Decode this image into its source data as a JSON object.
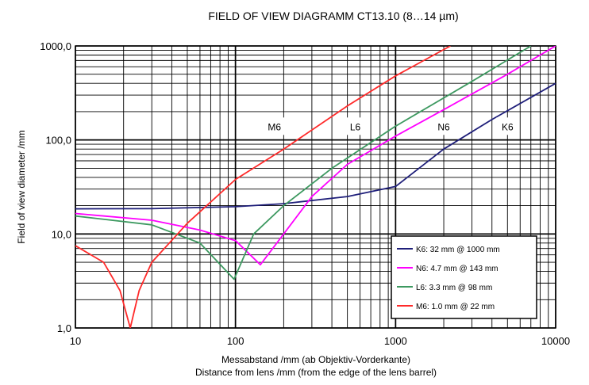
{
  "chart_data": {
    "type": "line",
    "title": "FIELD OF VIEW DIAGRAMM CT13.10 (8…14 µm)",
    "xlabel": "Messabstand /mm (ab Objektiv-Vorderkante)",
    "xlabel2": "Distance from lens /mm (from the edge of the lens barrel)",
    "ylabel": "Field of view diameter /mm",
    "x_scale": "log",
    "y_scale": "log",
    "xlim": [
      10,
      10000
    ],
    "ylim": [
      1,
      1000
    ],
    "grid": true,
    "legend_position": "bottom-right",
    "x_ticks": [
      {
        "value": 10,
        "label": "10"
      },
      {
        "value": 100,
        "label": "100"
      },
      {
        "value": 1000,
        "label": "1000"
      },
      {
        "value": 10000,
        "label": "10000"
      }
    ],
    "y_ticks": [
      {
        "value": 1,
        "label": "1,0"
      },
      {
        "value": 10,
        "label": "10,0"
      },
      {
        "value": 100,
        "label": "100,0"
      },
      {
        "value": 1000,
        "label": "1000,0"
      }
    ],
    "series": [
      {
        "name": "K6: 32 mm @ 1000 mm",
        "color": "#1f1f7a",
        "points": [
          [
            10,
            18.5
          ],
          [
            30,
            18.6
          ],
          [
            100,
            19.5
          ],
          [
            200,
            21
          ],
          [
            500,
            25
          ],
          [
            1000,
            32
          ],
          [
            2000,
            80
          ],
          [
            4000,
            165
          ],
          [
            10000,
            400
          ]
        ]
      },
      {
        "name": "N6: 4.7 mm @ 143 mm",
        "color": "#ff00ff",
        "points": [
          [
            10,
            16.5
          ],
          [
            30,
            14
          ],
          [
            60,
            11
          ],
          [
            100,
            8.5
          ],
          [
            143,
            4.7
          ],
          [
            200,
            10
          ],
          [
            300,
            25
          ],
          [
            500,
            55
          ],
          [
            1000,
            110
          ],
          [
            2000,
            210
          ],
          [
            5000,
            500
          ],
          [
            10000,
            1000
          ]
        ]
      },
      {
        "name": "L6: 3.3 mm @ 98 mm",
        "color": "#3d9960",
        "points": [
          [
            10,
            15.5
          ],
          [
            30,
            12.5
          ],
          [
            60,
            8
          ],
          [
            98,
            3.3
          ],
          [
            130,
            10
          ],
          [
            200,
            20
          ],
          [
            400,
            50
          ],
          [
            1000,
            140
          ],
          [
            3000,
            420
          ],
          [
            7000,
            1000
          ]
        ]
      },
      {
        "name": "M6: 1.0 mm @ 22 mm",
        "color": "#ff2a2a",
        "points": [
          [
            10,
            7.5
          ],
          [
            15,
            5
          ],
          [
            19,
            2.5
          ],
          [
            22,
            1.0
          ],
          [
            25,
            2.5
          ],
          [
            30,
            5
          ],
          [
            50,
            13
          ],
          [
            100,
            38
          ],
          [
            200,
            80
          ],
          [
            500,
            230
          ],
          [
            1000,
            480
          ],
          [
            2200,
            1000
          ]
        ]
      }
    ],
    "annotations": [
      {
        "text": "M6",
        "x": 175,
        "y": 140
      },
      {
        "text": "L6",
        "x": 560,
        "y": 140
      },
      {
        "text": "N6",
        "x": 2000,
        "y": 140
      },
      {
        "text": "K6",
        "x": 5000,
        "y": 140
      }
    ]
  }
}
